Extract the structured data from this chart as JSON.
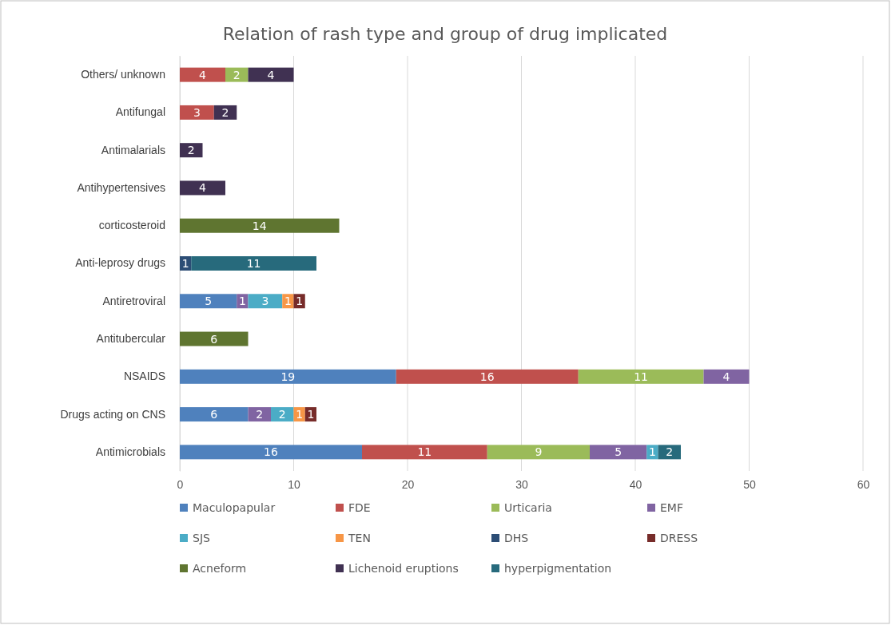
{
  "chart_data": {
    "type": "bar",
    "orientation": "horizontal",
    "stacked": true,
    "title": "Relation of rash type and group of drug implicated",
    "categories": [
      "Others/ unknown",
      "Antifungal",
      "Antimalarials",
      "Antihypertensives",
      "corticosteroid",
      "Anti-leprosy drugs",
      "Antiretroviral",
      "Antitubercular",
      "NSAIDS",
      "Drugs acting on CNS",
      "Antimicrobials"
    ],
    "series": [
      {
        "name": "Maculopapular",
        "color": "#4f81bd",
        "values": [
          null,
          null,
          null,
          null,
          null,
          null,
          5,
          null,
          19,
          6,
          16
        ]
      },
      {
        "name": "FDE",
        "color": "#c0504d",
        "values": [
          4,
          3,
          null,
          null,
          null,
          null,
          null,
          null,
          16,
          null,
          11
        ]
      },
      {
        "name": "Urticaria",
        "color": "#9bbb59",
        "values": [
          2,
          null,
          null,
          null,
          null,
          null,
          null,
          null,
          11,
          null,
          9
        ]
      },
      {
        "name": "EMF",
        "color": "#8064a2",
        "values": [
          null,
          null,
          null,
          null,
          null,
          null,
          1,
          null,
          4,
          2,
          5
        ]
      },
      {
        "name": "SJS",
        "color": "#4bacc6",
        "values": [
          null,
          null,
          null,
          null,
          null,
          null,
          3,
          null,
          null,
          2,
          1
        ]
      },
      {
        "name": "TEN",
        "color": "#f79646",
        "values": [
          null,
          null,
          null,
          null,
          null,
          null,
          1,
          null,
          null,
          1,
          null
        ]
      },
      {
        "name": "DHS",
        "color": "#2c4d75",
        "values": [
          null,
          null,
          null,
          null,
          null,
          1,
          null,
          null,
          null,
          null,
          null
        ]
      },
      {
        "name": "DRESS",
        "color": "#772c2a",
        "values": [
          null,
          null,
          null,
          null,
          null,
          null,
          1,
          null,
          null,
          1,
          null
        ]
      },
      {
        "name": "Acneform",
        "color": "#5f7530",
        "values": [
          null,
          null,
          null,
          null,
          14,
          null,
          null,
          6,
          null,
          null,
          null
        ]
      },
      {
        "name": "Lichenoid eruptions",
        "color": "#403152",
        "values": [
          4,
          2,
          2,
          4,
          null,
          null,
          null,
          null,
          null,
          null,
          null
        ]
      },
      {
        "name": "hyperpigmentation",
        "color": "#276a7c",
        "values": [
          null,
          null,
          null,
          null,
          null,
          11,
          null,
          null,
          null,
          null,
          2
        ]
      }
    ],
    "xlim": [
      0,
      60
    ],
    "xticks": [
      0,
      10,
      20,
      30,
      40,
      50,
      60
    ],
    "grid": "x",
    "legend": "bottom",
    "data_labels": true
  }
}
